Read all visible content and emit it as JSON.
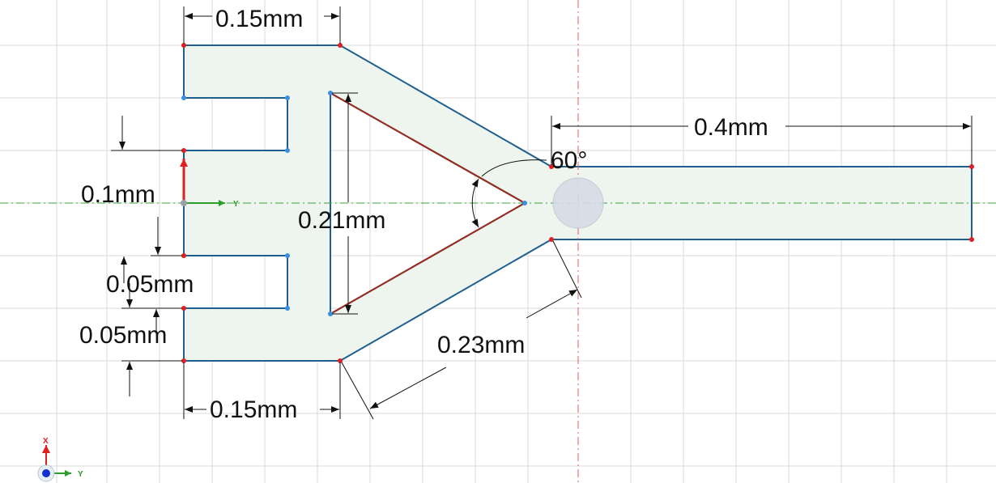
{
  "colors": {
    "grid": "#d9d9d9",
    "part_fill": "#eef4ee",
    "edge": "#1f5f8f",
    "construction": "#9a2a1a",
    "vertex_red": "#e02020",
    "vertex_blue": "#3a8fe0",
    "axis_x": "#e02020",
    "axis_y": "#2aa02a",
    "centerline_h": "#3aa03a",
    "centerline_v": "#e06060"
  },
  "dimensions": {
    "top_width": "0.15mm",
    "bottom_width": "0.15mm",
    "gap_height": "0.1mm",
    "slot_height_1": "0.05mm",
    "slot_height_2": "0.05mm",
    "triangle_height": "0.21mm",
    "apex_angle": "60°",
    "diagonal_length": "0.23mm",
    "shaft_length": "0.4mm"
  },
  "axes": {
    "sketch_y": "Y",
    "triad_x": "X",
    "triad_y": "Y"
  }
}
